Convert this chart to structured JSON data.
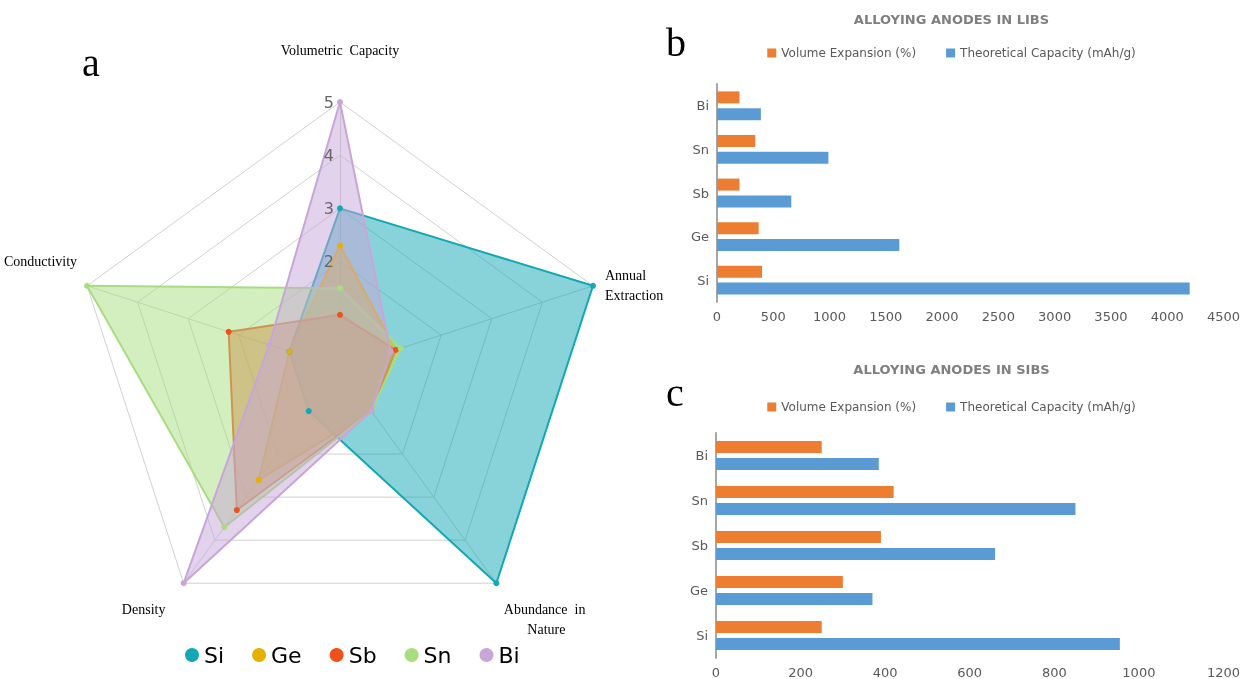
{
  "chart_data": [
    {
      "type": "radar",
      "categories": [
        "Volumetric  Capacity",
        "Annual Extraction",
        "Abundance  in Nature",
        "Density",
        "Conductivity"
      ],
      "series": [
        {
          "name": "Si",
          "color": "#12a8b5",
          "values": [
            3,
            5,
            5,
            1,
            1
          ]
        },
        {
          "name": "Ge",
          "color": "#e6b000",
          "values": [
            2.3,
            1.1,
            1,
            2.6,
            1
          ]
        },
        {
          "name": "Sb",
          "color": "#f0501a",
          "values": [
            1,
            1.1,
            1,
            3.3,
            2.2
          ]
        },
        {
          "name": "Sn",
          "color": "#a8dd80",
          "values": [
            1.5,
            1.2,
            1,
            3.7,
            5
          ]
        },
        {
          "name": "Bi",
          "color": "#c8a6d8",
          "values": [
            5,
            1,
            1,
            5,
            1.4
          ]
        }
      ],
      "ylim": [
        0,
        5
      ],
      "yticks": [
        2,
        3,
        4,
        5
      ],
      "legend": "bottom",
      "marker": "circle",
      "annotations": [
        "a"
      ]
    },
    {
      "type": "bar",
      "orientation": "horizontal",
      "title": "ALLOYING ANODES IN LIBS",
      "categories": [
        "Bi",
        "Sn",
        "Sb",
        "Ge",
        "Si"
      ],
      "series": [
        {
          "name": "Volume Expansion (%)",
          "color": "#ed7d31",
          "values": [
            200,
            340,
            200,
            370,
            400
          ]
        },
        {
          "name": "Theoretical Capacity (mAh/g)",
          "color": "#5b9bd5",
          "values": [
            390,
            990,
            660,
            1620,
            4200
          ]
        }
      ],
      "xlim": [
        0,
        4500
      ],
      "xticks": [
        0,
        500,
        1000,
        1500,
        2000,
        2500,
        3000,
        3500,
        4000,
        4500
      ],
      "legend": "top",
      "annotations": [
        "b"
      ]
    },
    {
      "type": "bar",
      "orientation": "horizontal",
      "title": "ALLOYING ANODES IN SIBS",
      "categories": [
        "Bi",
        "Sn",
        "Sb",
        "Ge",
        "Si"
      ],
      "series": [
        {
          "name": "Volume Expansion (%)",
          "color": "#ed7d31",
          "values": [
            250,
            420,
            390,
            300,
            250
          ]
        },
        {
          "name": "Theoretical Capacity (mAh/g)",
          "color": "#5b9bd5",
          "values": [
            385,
            850,
            660,
            370,
            955
          ]
        }
      ],
      "xlim": [
        0,
        1200
      ],
      "xticks": [
        0,
        200,
        400,
        600,
        800,
        1000,
        1200
      ],
      "legend": "top",
      "annotations": [
        "c"
      ]
    }
  ]
}
